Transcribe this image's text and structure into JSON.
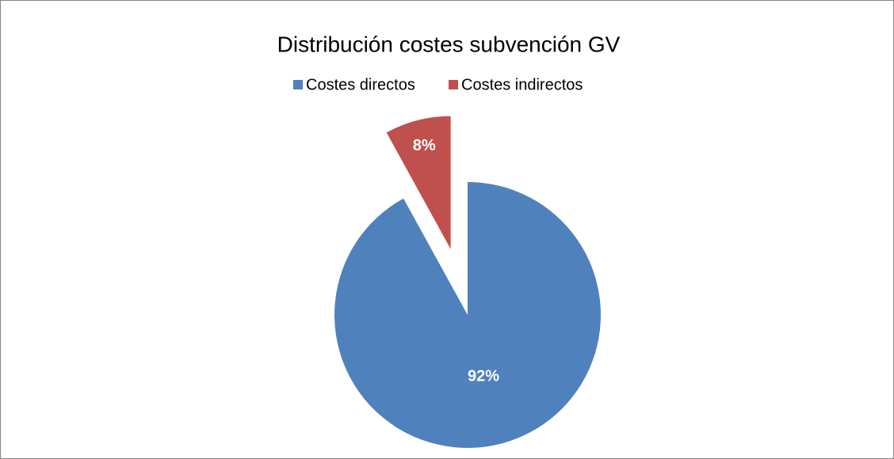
{
  "chart_data": {
    "type": "pie",
    "title": "Distribución costes subvención GV",
    "categories": [
      "Costes directos",
      "Costes indirectos"
    ],
    "values": [
      92,
      8
    ],
    "value_labels": [
      "92%",
      "8%"
    ],
    "colors": [
      "#4f81bd",
      "#c0504d"
    ],
    "legend": "top"
  }
}
